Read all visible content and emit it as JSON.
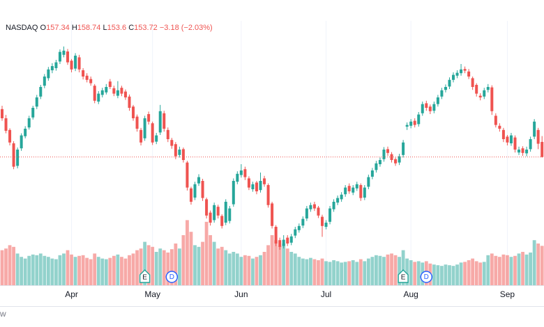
{
  "chart_data": {
    "type": "candlestick",
    "exchange": "NASDAQ",
    "ohlc_letters": [
      "O",
      "H",
      "L",
      "C"
    ],
    "change": {
      "value": -3.18,
      "label": "−3.18"
    },
    "change_pct": {
      "value": -2.03,
      "label": "(−2.03%)"
    },
    "watermark": "w",
    "up_color": "#26a69a",
    "down_color": "#ef5350",
    "ylim": [
      131,
      183
    ],
    "volume_lim": [
      0,
      250
    ],
    "xticks": [
      {
        "value": 18,
        "label": "Apr"
      },
      {
        "value": 39,
        "label": "May"
      },
      {
        "value": 62,
        "label": "Jun"
      },
      {
        "value": 84,
        "label": "Jul"
      },
      {
        "value": 106,
        "label": "Aug"
      },
      {
        "value": 131,
        "label": "Sep"
      }
    ],
    "events": [
      {
        "index": 37,
        "label": "E"
      },
      {
        "index": 44,
        "label": "D"
      },
      {
        "index": 104,
        "label": "E"
      },
      {
        "index": 110,
        "label": "D"
      }
    ],
    "candles": [
      [
        165.2,
        166.0,
        162.4,
        163.0
      ],
      [
        163.0,
        163.8,
        159.4,
        160.0
      ],
      [
        160.2,
        160.6,
        156.5,
        157.2
      ],
      [
        157.0,
        157.5,
        150.8,
        151.4
      ],
      [
        151.6,
        156.0,
        151.0,
        155.5
      ],
      [
        155.8,
        159.4,
        155.2,
        158.9
      ],
      [
        158.7,
        161.1,
        158.2,
        160.5
      ],
      [
        160.8,
        163.6,
        160.3,
        163.0
      ],
      [
        163.2,
        166.0,
        162.7,
        165.5
      ],
      [
        165.8,
        168.6,
        165.2,
        168.0
      ],
      [
        168.2,
        171.0,
        167.6,
        170.5
      ],
      [
        170.8,
        173.6,
        170.2,
        173.0
      ],
      [
        172.6,
        175.3,
        172.0,
        174.7
      ],
      [
        174.5,
        176.2,
        173.8,
        175.5
      ],
      [
        175.0,
        177.0,
        174.4,
        176.4
      ],
      [
        176.6,
        179.5,
        176.0,
        178.9
      ],
      [
        178.2,
        180.2,
        177.6,
        179.2
      ],
      [
        179.0,
        179.6,
        175.8,
        176.4
      ],
      [
        176.8,
        177.2,
        174.0,
        174.7
      ],
      [
        174.9,
        178.6,
        174.3,
        178.0
      ],
      [
        177.6,
        178.2,
        174.0,
        174.7
      ],
      [
        174.5,
        175.0,
        172.3,
        173.0
      ],
      [
        173.2,
        173.8,
        171.6,
        172.2
      ],
      [
        172.4,
        173.0,
        170.8,
        171.4
      ],
      [
        170.8,
        171.2,
        166.6,
        167.2
      ],
      [
        167.0,
        169.5,
        166.4,
        168.9
      ],
      [
        168.6,
        170.3,
        168.0,
        169.7
      ],
      [
        169.2,
        171.2,
        168.7,
        170.5
      ],
      [
        171.8,
        172.4,
        170.0,
        170.5
      ],
      [
        170.2,
        170.8,
        168.3,
        168.9
      ],
      [
        168.4,
        171.9,
        167.8,
        169.7
      ],
      [
        170.3,
        170.8,
        168.3,
        168.9
      ],
      [
        169.4,
        169.9,
        167.4,
        168.0
      ],
      [
        168.2,
        168.7,
        164.8,
        165.5
      ],
      [
        165.8,
        166.2,
        162.4,
        163.0
      ],
      [
        163.4,
        163.9,
        159.8,
        160.5
      ],
      [
        160.2,
        160.7,
        156.5,
        157.2
      ],
      [
        158.2,
        163.6,
        157.6,
        163.0
      ],
      [
        164.0,
        164.6,
        161.5,
        162.2
      ],
      [
        161.8,
        162.2,
        156.6,
        157.2
      ],
      [
        157.4,
        159.5,
        156.8,
        158.9
      ],
      [
        159.6,
        166.2,
        159.0,
        164.7
      ],
      [
        164.2,
        164.8,
        159.8,
        160.5
      ],
      [
        160.2,
        160.8,
        157.3,
        158.0
      ],
      [
        157.8,
        158.3,
        155.7,
        156.4
      ],
      [
        156.8,
        157.3,
        153.2,
        153.9
      ],
      [
        154.2,
        156.2,
        153.6,
        155.5
      ],
      [
        155.6,
        156.0,
        152.4,
        153.0
      ],
      [
        152.4,
        152.8,
        145.7,
        146.4
      ],
      [
        146.2,
        146.6,
        142.3,
        143.0
      ],
      [
        144.0,
        147.8,
        143.4,
        147.2
      ],
      [
        147.4,
        149.6,
        146.8,
        148.9
      ],
      [
        148.0,
        148.5,
        143.2,
        143.9
      ],
      [
        143.6,
        144.0,
        139.0,
        139.7
      ],
      [
        140.4,
        140.9,
        137.3,
        138.0
      ],
      [
        138.6,
        142.8,
        138.0,
        142.2
      ],
      [
        141.8,
        142.3,
        139.0,
        139.7
      ],
      [
        139.6,
        140.0,
        136.6,
        137.2
      ],
      [
        138.0,
        143.6,
        137.4,
        143.0
      ],
      [
        138.4,
        142.0,
        137.8,
        141.4
      ],
      [
        142.4,
        148.6,
        141.8,
        148.0
      ],
      [
        147.8,
        150.3,
        147.2,
        149.7
      ],
      [
        149.4,
        152.0,
        148.8,
        150.5
      ],
      [
        150.8,
        151.4,
        148.2,
        148.9
      ],
      [
        148.6,
        149.1,
        145.8,
        146.4
      ],
      [
        146.0,
        147.8,
        145.4,
        147.2
      ],
      [
        147.6,
        148.0,
        144.8,
        145.5
      ],
      [
        145.8,
        150.0,
        145.2,
        148.0
      ],
      [
        148.6,
        149.2,
        146.6,
        147.2
      ],
      [
        147.0,
        147.4,
        141.6,
        142.2
      ],
      [
        142.6,
        143.0,
        136.6,
        137.2
      ],
      [
        137.0,
        137.4,
        132.4,
        133.0
      ],
      [
        133.8,
        134.4,
        131.5,
        132.2
      ],
      [
        132.4,
        135.0,
        131.8,
        133.9
      ],
      [
        134.4,
        135.0,
        132.4,
        133.0
      ],
      [
        133.2,
        135.3,
        132.6,
        134.7
      ],
      [
        134.9,
        137.0,
        134.3,
        136.4
      ],
      [
        136.2,
        137.8,
        135.6,
        137.2
      ],
      [
        137.3,
        139.5,
        136.7,
        138.9
      ],
      [
        139.0,
        142.0,
        138.4,
        141.4
      ],
      [
        141.2,
        142.8,
        140.6,
        142.2
      ],
      [
        142.4,
        143.0,
        140.8,
        141.4
      ],
      [
        141.6,
        142.0,
        139.1,
        139.7
      ],
      [
        139.4,
        139.9,
        134.6,
        137.2
      ],
      [
        137.0,
        138.6,
        136.4,
        138.0
      ],
      [
        138.2,
        142.0,
        137.6,
        141.4
      ],
      [
        141.2,
        143.6,
        140.6,
        143.0
      ],
      [
        142.8,
        144.5,
        142.2,
        143.9
      ],
      [
        143.6,
        145.3,
        143.0,
        144.7
      ],
      [
        144.8,
        147.0,
        144.2,
        146.4
      ],
      [
        146.8,
        147.4,
        144.9,
        145.5
      ],
      [
        145.2,
        147.0,
        144.6,
        146.4
      ],
      [
        146.2,
        147.8,
        145.6,
        147.2
      ],
      [
        147.0,
        147.4,
        143.2,
        143.9
      ],
      [
        144.0,
        147.0,
        143.4,
        146.4
      ],
      [
        146.6,
        149.5,
        146.0,
        148.9
      ],
      [
        149.0,
        151.1,
        148.4,
        150.5
      ],
      [
        150.6,
        152.8,
        150.0,
        152.2
      ],
      [
        152.0,
        153.6,
        151.4,
        153.0
      ],
      [
        153.2,
        156.1,
        152.6,
        155.5
      ],
      [
        155.6,
        156.2,
        154.0,
        154.7
      ],
      [
        154.4,
        154.9,
        152.4,
        153.0
      ],
      [
        153.2,
        153.6,
        151.6,
        152.2
      ],
      [
        152.4,
        154.5,
        151.8,
        153.9
      ],
      [
        154.2,
        157.8,
        153.6,
        157.2
      ],
      [
        161.0,
        162.0,
        160.2,
        161.4
      ],
      [
        161.2,
        162.8,
        160.6,
        162.2
      ],
      [
        162.4,
        163.0,
        160.8,
        161.4
      ],
      [
        161.6,
        164.5,
        161.0,
        163.9
      ],
      [
        164.2,
        167.0,
        163.6,
        166.4
      ],
      [
        166.6,
        167.2,
        164.8,
        165.5
      ],
      [
        165.8,
        166.3,
        164.0,
        164.7
      ],
      [
        164.8,
        167.0,
        164.2,
        166.4
      ],
      [
        166.4,
        168.6,
        165.8,
        168.0
      ],
      [
        168.2,
        170.3,
        167.6,
        169.7
      ],
      [
        169.8,
        171.1,
        169.2,
        170.5
      ],
      [
        170.6,
        172.8,
        170.0,
        172.2
      ],
      [
        172.2,
        174.0,
        171.6,
        173.4
      ],
      [
        173.2,
        174.5,
        172.6,
        173.9
      ],
      [
        173.8,
        176.0,
        173.2,
        174.7
      ],
      [
        174.8,
        175.4,
        173.8,
        174.4
      ],
      [
        174.2,
        174.8,
        172.4,
        173.0
      ],
      [
        172.6,
        173.0,
        169.8,
        170.5
      ],
      [
        171.0,
        171.4,
        168.2,
        168.9
      ],
      [
        168.4,
        169.0,
        167.3,
        168.0
      ],
      [
        168.2,
        170.3,
        167.6,
        169.7
      ],
      [
        169.8,
        171.2,
        169.2,
        170.5
      ],
      [
        170.4,
        170.9,
        163.8,
        164.7
      ],
      [
        163.6,
        164.2,
        160.8,
        161.4
      ],
      [
        161.2,
        161.8,
        159.8,
        160.5
      ],
      [
        160.2,
        160.7,
        157.3,
        158.0
      ],
      [
        158.6,
        159.0,
        156.5,
        157.2
      ],
      [
        157.0,
        159.5,
        156.4,
        158.9
      ],
      [
        158.4,
        158.9,
        154.8,
        155.5
      ],
      [
        154.8,
        156.2,
        154.2,
        155.5
      ],
      [
        155.8,
        156.3,
        154.0,
        154.7
      ],
      [
        154.6,
        156.2,
        153.9,
        155.5
      ],
      [
        155.6,
        158.6,
        155.0,
        158.0
      ],
      [
        158.6,
        162.8,
        158.0,
        162.2
      ],
      [
        160.2,
        160.7,
        155.6,
        156.9
      ],
      [
        157.34,
        158.74,
        153.6,
        153.72
      ]
    ],
    "volume": [
      105,
      110,
      120,
      115,
      95,
      85,
      80,
      88,
      92,
      90,
      95,
      88,
      85,
      80,
      78,
      90,
      95,
      105,
      92,
      85,
      88,
      90,
      82,
      78,
      95,
      85,
      80,
      78,
      82,
      88,
      92,
      85,
      80,
      90,
      95,
      105,
      110,
      130,
      120,
      115,
      100,
      110,
      105,
      98,
      108,
      125,
      110,
      150,
      195,
      160,
      120,
      115,
      130,
      190,
      150,
      130,
      110,
      115,
      105,
      95,
      100,
      95,
      85,
      90,
      88,
      80,
      85,
      90,
      100,
      120,
      150,
      135,
      118,
      125,
      110,
      100,
      95,
      85,
      80,
      78,
      82,
      78,
      75,
      80,
      72,
      70,
      75,
      72,
      68,
      70,
      72,
      75,
      70,
      78,
      72,
      80,
      85,
      90,
      88,
      85,
      92,
      95,
      90,
      85,
      105,
      80,
      75,
      70,
      72,
      68,
      72,
      65,
      62,
      60,
      58,
      62,
      60,
      58,
      62,
      68,
      70,
      75,
      80,
      72,
      68,
      70,
      90,
      95,
      88,
      85,
      92,
      90,
      85,
      88,
      95,
      100,
      92,
      98,
      135,
      125,
      118
    ]
  }
}
